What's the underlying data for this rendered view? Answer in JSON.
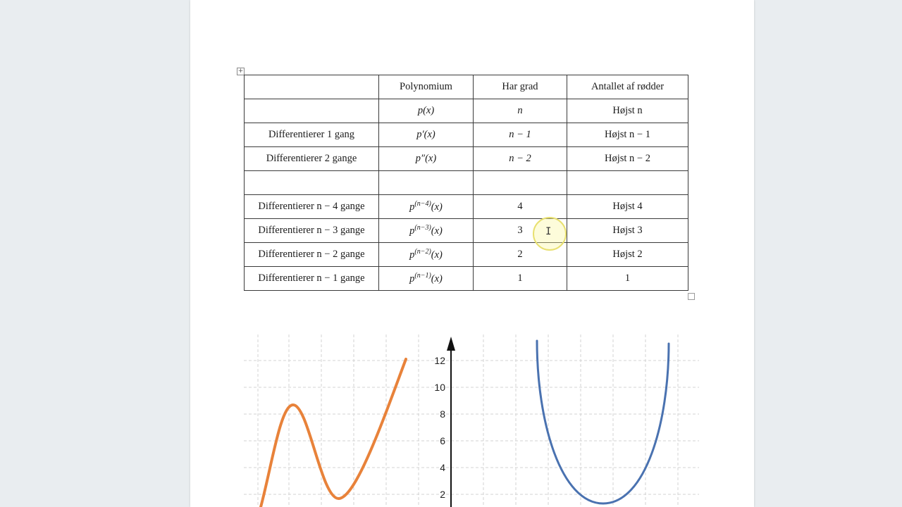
{
  "table": {
    "header": [
      "",
      "Polynomium",
      "Har grad",
      "Antallet af rødder"
    ],
    "rows": [
      [
        "",
        "p(x)",
        "n",
        "Højst n"
      ],
      [
        "Differentierer 1 gang",
        "p′(x)",
        "n − 1",
        "Højst n − 1"
      ],
      [
        "Differentierer 2 gange",
        "p″(x)",
        "n − 2",
        "Højst n − 2"
      ],
      [
        "",
        "",
        "",
        ""
      ],
      [
        "Differentierer n − 4 gange",
        "p(n−4)(x)",
        "4",
        "Højst 4"
      ],
      [
        "Differentierer n − 3 gange",
        "p(n−3)(x)",
        "3",
        "Højst 3"
      ],
      [
        "Differentierer n − 2 gange",
        "p(n−2)(x)",
        "2",
        "Højst 2"
      ],
      [
        "Differentierer n − 1 gange",
        "p(n−1)(x)",
        "1",
        "1"
      ]
    ]
  },
  "graph": {
    "y_ticks": [
      "12",
      "10",
      "8",
      "6",
      "4",
      "2"
    ],
    "curve_colors": {
      "left": "#e8823a",
      "right": "#4a72b0"
    }
  }
}
